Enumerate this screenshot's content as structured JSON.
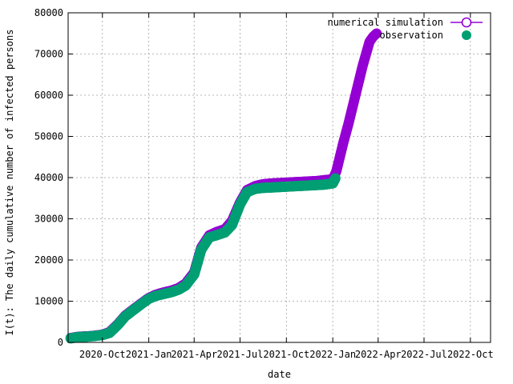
{
  "chart_data": {
    "type": "scatter",
    "title": "",
    "xlabel": "date",
    "ylabel": "I(t): The daily cumulative number of infected persons",
    "xlim": [
      "2020-07-25",
      "2022-11-10"
    ],
    "ylim": [
      0,
      80000
    ],
    "grid": true,
    "legend_position": "top-right",
    "x_tick_labels": [
      "2020-Oct",
      "2021-Jan",
      "2021-Apr",
      "2021-Jul",
      "2021-Oct",
      "2022-Jan",
      "2022-Apr",
      "2022-Jul",
      "2022-Oct"
    ],
    "x_tick_dates": [
      "2020-10-01",
      "2021-01-01",
      "2021-04-01",
      "2021-07-01",
      "2021-10-01",
      "2022-01-01",
      "2022-04-01",
      "2022-07-01",
      "2022-10-01"
    ],
    "y_ticks": [
      0,
      10000,
      20000,
      30000,
      40000,
      50000,
      60000,
      70000,
      80000
    ],
    "series": [
      {
        "name": "numerical simulation",
        "marker": "open-circle",
        "color": "#9400d3",
        "x": [
          "2020-07-30",
          "2020-08-15",
          "2020-09-01",
          "2020-09-15",
          "2020-10-01",
          "2020-10-15",
          "2020-11-01",
          "2020-11-15",
          "2020-12-01",
          "2020-12-15",
          "2021-01-01",
          "2021-01-15",
          "2021-02-01",
          "2021-02-15",
          "2021-03-01",
          "2021-03-15",
          "2021-04-01",
          "2021-04-15",
          "2021-05-01",
          "2021-05-15",
          "2021-06-01",
          "2021-06-15",
          "2021-07-01",
          "2021-07-15",
          "2021-08-01",
          "2021-08-15",
          "2021-09-01",
          "2021-09-15",
          "2021-10-01",
          "2021-10-15",
          "2021-11-01",
          "2021-11-15",
          "2021-12-01",
          "2021-12-15",
          "2022-01-01",
          "2022-01-08",
          "2022-01-15",
          "2022-01-22",
          "2022-02-01",
          "2022-02-08",
          "2022-02-15",
          "2022-02-22",
          "2022-03-01",
          "2022-03-08",
          "2022-03-15",
          "2022-03-22",
          "2022-03-29"
        ],
        "y": [
          1100,
          1400,
          1500,
          1650,
          1900,
          2500,
          4500,
          6500,
          8000,
          9300,
          10800,
          11600,
          12200,
          12600,
          13200,
          14300,
          17000,
          23000,
          26000,
          26800,
          27500,
          29500,
          34000,
          37000,
          38000,
          38400,
          38600,
          38700,
          38800,
          38900,
          39000,
          39100,
          39200,
          39400,
          39600,
          41500,
          45000,
          48500,
          53000,
          56500,
          60000,
          63500,
          67000,
          70000,
          73000,
          74200,
          75000
        ]
      },
      {
        "name": "observation",
        "marker": "filled-circle",
        "color": "#009e73",
        "x": [
          "2020-07-30",
          "2020-08-15",
          "2020-09-01",
          "2020-09-15",
          "2020-10-01",
          "2020-10-15",
          "2020-11-01",
          "2020-11-15",
          "2020-12-01",
          "2020-12-15",
          "2021-01-01",
          "2021-01-15",
          "2021-02-01",
          "2021-02-15",
          "2021-03-01",
          "2021-03-15",
          "2021-04-01",
          "2021-04-15",
          "2021-05-01",
          "2021-05-15",
          "2021-06-01",
          "2021-06-15",
          "2021-07-01",
          "2021-07-15",
          "2021-08-01",
          "2021-08-15",
          "2021-09-01",
          "2021-09-15",
          "2021-10-01",
          "2021-10-15",
          "2021-11-01",
          "2021-11-15",
          "2021-12-01",
          "2021-12-15",
          "2022-01-01",
          "2022-01-06"
        ],
        "y": [
          1000,
          1300,
          1400,
          1550,
          1800,
          2300,
          4300,
          6300,
          7800,
          9100,
          10600,
          11300,
          11800,
          12200,
          12800,
          13800,
          16500,
          22500,
          25500,
          26000,
          26700,
          28500,
          33500,
          36500,
          37300,
          37500,
          37600,
          37700,
          37800,
          37900,
          38000,
          38100,
          38200,
          38300,
          38600,
          39800
        ]
      }
    ]
  }
}
